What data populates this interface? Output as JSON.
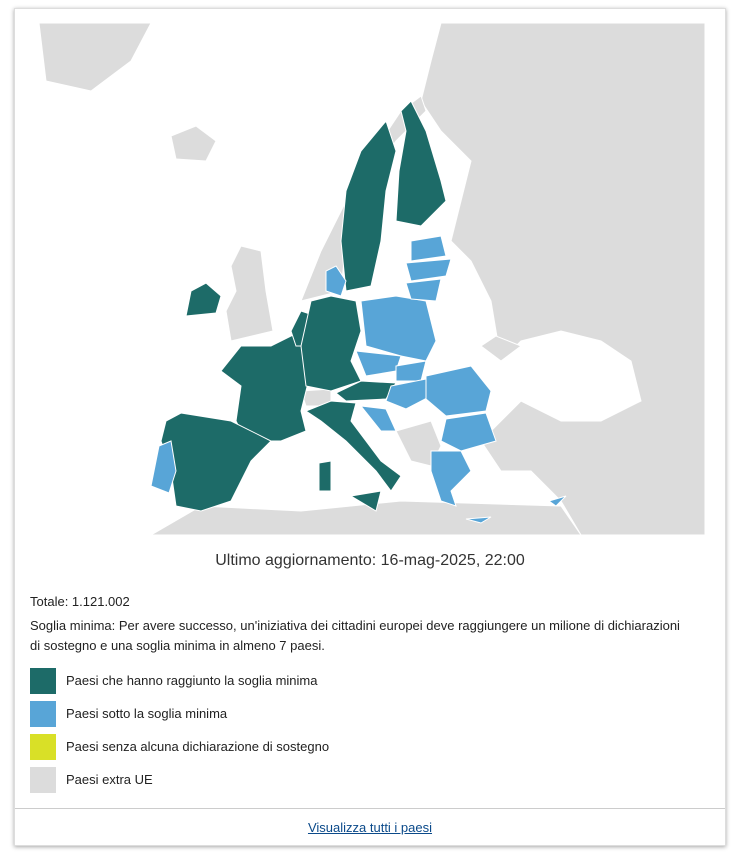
{
  "map": {
    "updated": "Ultimo aggiornamento: 16-mag-2025, 22:00"
  },
  "total": "Totale: 1.121.002",
  "threshold_note": "Soglia minima: Per avere successo, un'iniziativa dei cittadini europei deve raggiungere un milione di dichiarazioni di sostegno e una soglia minima in almeno 7 paesi.",
  "legend": [
    {
      "label": "Paesi che hanno raggiunto la soglia minima",
      "color": "#1d6b68"
    },
    {
      "label": "Paesi sotto la soglia minima",
      "color": "#58a5d7"
    },
    {
      "label": "Paesi senza alcuna dichiarazione di sostegno",
      "color": "#d9e027"
    },
    {
      "label": "Paesi extra UE",
      "color": "#dcdcdc"
    }
  ],
  "link": "Visualizza tutti i paesi"
}
